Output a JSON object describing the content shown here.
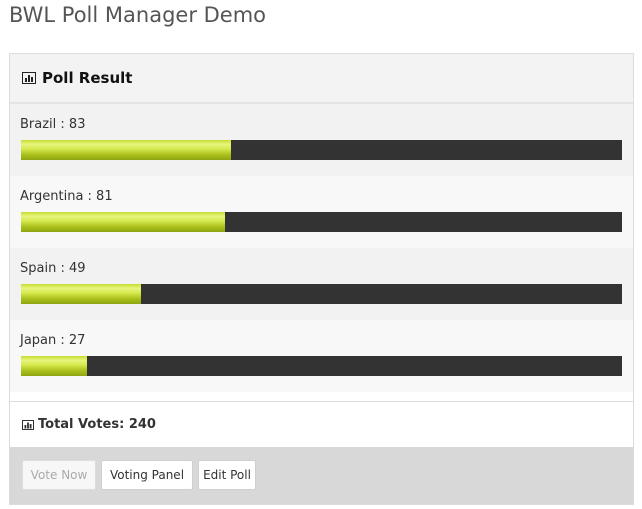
{
  "page": {
    "title": "BWL Poll Manager Demo"
  },
  "poll": {
    "heading": "Poll Result",
    "heading_icon": "bar-chart-icon",
    "results": [
      {
        "label": "Brazil : 83",
        "votes": 83,
        "fill_fraction": 0.35
      },
      {
        "label": "Argentina : 81",
        "votes": 81,
        "fill_fraction": 0.34
      },
      {
        "label": "Spain : 49",
        "votes": 49,
        "fill_fraction": 0.2
      },
      {
        "label": "Japan : 27",
        "votes": 27,
        "fill_fraction": 0.11
      }
    ],
    "total_label": "Total Votes: 240",
    "total_icon": "bar-chart-icon"
  },
  "buttons": {
    "vote_now": "Vote Now",
    "voting_panel": "Voting Panel",
    "edit_poll": "Edit Poll"
  },
  "colors": {
    "bar_track": "#333333",
    "bar_fill": "#c7dc32",
    "footer_bg": "#d8d8d8"
  }
}
